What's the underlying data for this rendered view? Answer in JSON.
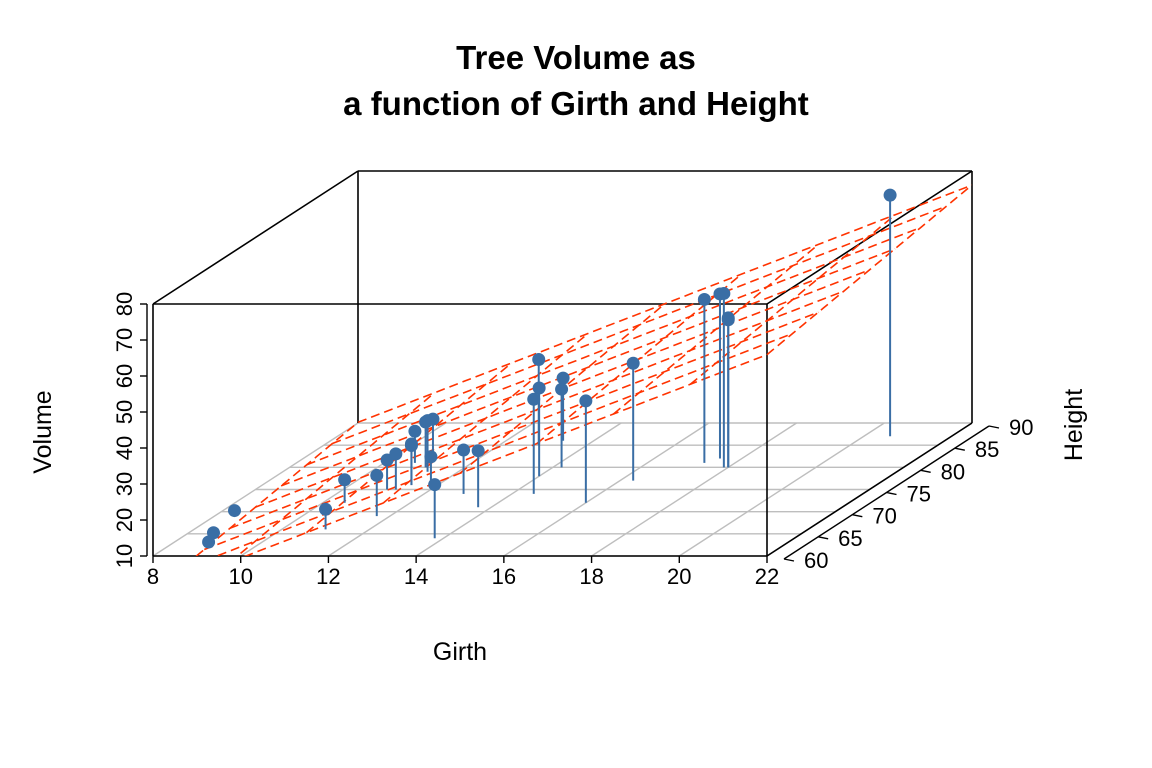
{
  "chart_data": {
    "type": "scatter",
    "title_lines": [
      "Tree Volume as",
      "a function of Girth and Height"
    ],
    "xlabel": "Girth",
    "ylabel": "Height",
    "zlabel": "Volume",
    "xlim": [
      8,
      22
    ],
    "ylim": [
      60,
      90
    ],
    "zlim": [
      10,
      80
    ],
    "x_ticks": [
      8,
      10,
      12,
      14,
      16,
      18,
      20,
      22
    ],
    "y_ticks": [
      60,
      65,
      70,
      75,
      80,
      85,
      90
    ],
    "z_ticks": [
      10,
      20,
      30,
      40,
      50,
      60,
      70,
      80
    ],
    "grid": true,
    "drop_lines": true,
    "regression_plane": {
      "intercept": -57.99,
      "girth_coef": 4.708,
      "height_coef": 0.339,
      "style": "dashed"
    },
    "colors": {
      "points": "#3a6ea5",
      "plane": "#ff3300",
      "grid": "#bebebe",
      "box": "#000000"
    },
    "series": [
      {
        "x": [
          8.3,
          8.6,
          8.8,
          10.5,
          10.7,
          10.8,
          11.0,
          11.0,
          11.1,
          11.2,
          11.3,
          11.4,
          11.4,
          11.7,
          12.0,
          12.9,
          12.9,
          13.3,
          13.7,
          13.8,
          14.0,
          14.2,
          14.5,
          16.0,
          16.3,
          17.3,
          17.5,
          17.9,
          18.0,
          18.0,
          20.6
        ],
        "y": [
          70,
          65,
          63,
          72,
          81,
          83,
          66,
          75,
          80,
          75,
          79,
          76,
          76,
          69,
          75,
          74,
          85,
          86,
          71,
          64,
          78,
          80,
          74,
          72,
          77,
          81,
          82,
          80,
          80,
          80,
          87
        ],
        "z": [
          10.3,
          10.3,
          10.2,
          16.4,
          18.8,
          19.7,
          15.6,
          18.2,
          22.6,
          19.9,
          24.2,
          21.0,
          21.4,
          21.3,
          19.1,
          22.2,
          33.8,
          27.4,
          25.7,
          24.9,
          34.5,
          31.7,
          36.3,
          38.3,
          42.6,
          55.4,
          55.7,
          58.3,
          51.5,
          51.0,
          77.0
        ]
      }
    ]
  }
}
